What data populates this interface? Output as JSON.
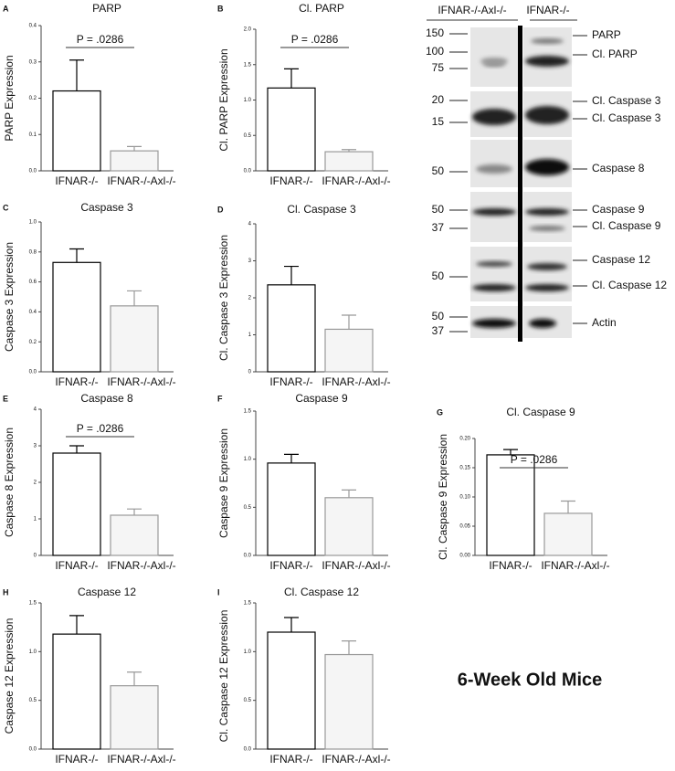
{
  "chart_data": [
    {
      "type": "bar",
      "panel": "A",
      "title": "PARP",
      "ylabel": "PARP Expression",
      "categories": [
        "IFNAR-/-",
        "IFNAR-/-Axl-/-"
      ],
      "values": [
        0.22,
        0.055
      ],
      "errors": [
        0.085,
        0.012
      ],
      "colors": [
        "#ffffff",
        "#f5f5f5"
      ],
      "edge_colors": [
        "#000000",
        "#999999"
      ],
      "ylim": [
        0,
        0.4
      ],
      "yticks": [
        {
          "value": 0,
          "label": "0.0"
        },
        0.1,
        0.2,
        0.3,
        0.4
      ],
      "annotation": "P = .0286"
    },
    {
      "type": "bar",
      "panel": "B",
      "title": "Cl. PARP",
      "ylabel": "Cl. PARP Expression",
      "categories": [
        "IFNAR-/-",
        "IFNAR-/-Axl-/-"
      ],
      "values": [
        1.17,
        0.27
      ],
      "errors": [
        0.27,
        0.03
      ],
      "colors": [
        "#ffffff",
        "#f5f5f5"
      ],
      "edge_colors": [
        "#000000",
        "#999999"
      ],
      "ylim": [
        0,
        2
      ],
      "yticks": [
        {
          "value": 0,
          "label": "0.0"
        },
        0.5,
        {
          "value": 1,
          "label": "1.0"
        },
        1.5,
        {
          "value": 2,
          "label": "2.0"
        }
      ],
      "annotation": "P = .0286"
    },
    {
      "type": "bar",
      "panel": "C",
      "title": "Caspase 3",
      "ylabel": "Caspase 3 Expression",
      "categories": [
        "IFNAR-/-",
        "IFNAR-/-Axl-/-"
      ],
      "values": [
        0.73,
        0.44
      ],
      "errors": [
        0.09,
        0.1
      ],
      "colors": [
        "#ffffff",
        "#f5f5f5"
      ],
      "edge_colors": [
        "#000000",
        "#999999"
      ],
      "ylim": [
        0,
        1
      ],
      "yticks": [
        {
          "value": 0,
          "label": "0.0"
        },
        0.2,
        0.4,
        0.6,
        0.8,
        {
          "value": 1,
          "label": "1.0"
        }
      ]
    },
    {
      "type": "bar",
      "panel": "D",
      "title": "Cl. Caspase 3",
      "ylabel": "Cl. Caspase 3 Expression",
      "categories": [
        "IFNAR-/-",
        "IFNAR-/-Axl-/-"
      ],
      "values": [
        2.35,
        1.15
      ],
      "errors": [
        0.5,
        0.38
      ],
      "colors": [
        "#ffffff",
        "#f5f5f5"
      ],
      "edge_colors": [
        "#000000",
        "#999999"
      ],
      "ylim": [
        0,
        4
      ],
      "yticks": [
        0,
        1,
        2,
        3,
        4
      ]
    },
    {
      "type": "bar",
      "panel": "E",
      "title": "Caspase 8",
      "ylabel": "Caspase 8 Expression",
      "categories": [
        "IFNAR-/-",
        "IFNAR-/-Axl-/-"
      ],
      "values": [
        2.8,
        1.1
      ],
      "errors": [
        0.2,
        0.17
      ],
      "colors": [
        "#ffffff",
        "#f5f5f5"
      ],
      "edge_colors": [
        "#000000",
        "#999999"
      ],
      "ylim": [
        0,
        4
      ],
      "yticks": [
        0,
        1,
        2,
        3,
        4
      ],
      "annotation": "P = .0286"
    },
    {
      "type": "bar",
      "panel": "F",
      "title": "Caspase 9",
      "ylabel": "Caspase 9 Expression",
      "categories": [
        "IFNAR-/-",
        "IFNAR-/-Axl-/-"
      ],
      "values": [
        0.96,
        0.6
      ],
      "errors": [
        0.09,
        0.08
      ],
      "colors": [
        "#ffffff",
        "#f5f5f5"
      ],
      "edge_colors": [
        "#000000",
        "#999999"
      ],
      "ylim": [
        0,
        1.5
      ],
      "yticks": [
        {
          "value": 0,
          "label": "0.0"
        },
        0.5,
        {
          "value": 1,
          "label": "1.0"
        },
        1.5
      ]
    },
    {
      "type": "bar",
      "panel": "G",
      "title": "Cl. Caspase 9",
      "ylabel": "Cl. Caspase 9 Expression",
      "categories": [
        "IFNAR-/-",
        "IFNAR-/-Axl-/-"
      ],
      "values": [
        0.172,
        0.072
      ],
      "errors": [
        0.009,
        0.021
      ],
      "colors": [
        "#ffffff",
        "#f5f5f5"
      ],
      "edge_colors": [
        "#000000",
        "#999999"
      ],
      "ylim": [
        0,
        0.2
      ],
      "yticks": [
        {
          "value": 0,
          "label": "0.00"
        },
        0.05,
        {
          "value": 0.1,
          "label": "0.10"
        },
        0.15,
        {
          "value": 0.2,
          "label": "0.20"
        }
      ],
      "annotation": "P = .0286"
    },
    {
      "type": "bar",
      "panel": "H",
      "title": "Caspase 12",
      "ylabel": "Caspase 12 Expression",
      "categories": [
        "IFNAR-/-",
        "IFNAR-/-Axl-/-"
      ],
      "values": [
        1.18,
        0.65
      ],
      "errors": [
        0.19,
        0.14
      ],
      "colors": [
        "#ffffff",
        "#f5f5f5"
      ],
      "edge_colors": [
        "#000000",
        "#999999"
      ],
      "ylim": [
        0,
        1.5
      ],
      "yticks": [
        {
          "value": 0,
          "label": "0.0"
        },
        0.5,
        {
          "value": 1,
          "label": "1.0"
        },
        1.5
      ]
    },
    {
      "type": "bar",
      "panel": "I",
      "title": "Cl. Caspase 12",
      "ylabel": "Cl. Caspase 12 Expression",
      "categories": [
        "IFNAR-/-",
        "IFNAR-/-Axl-/-"
      ],
      "values": [
        1.2,
        0.97
      ],
      "errors": [
        0.15,
        0.14
      ],
      "colors": [
        "#ffffff",
        "#f5f5f5"
      ],
      "edge_colors": [
        "#000000",
        "#999999"
      ],
      "ylim": [
        0,
        1.5
      ],
      "yticks": [
        {
          "value": 0,
          "label": "0.0"
        },
        0.5,
        {
          "value": 1,
          "label": "1.0"
        },
        1.5
      ]
    }
  ],
  "blot": {
    "lanes": [
      "IFNAR-/-Axl-/-",
      "IFNAR-/-"
    ],
    "markers": [
      "150",
      "100",
      "75",
      "20",
      "15",
      "50",
      "50",
      "37",
      "50",
      "50",
      "37"
    ],
    "bands": [
      "PARP",
      "Cl. PARP",
      "Cl. Caspase 3",
      "Cl. Caspase 3",
      "Caspase 8",
      "Caspase 9",
      "Cl. Caspase 9",
      "Caspase 12",
      "Cl. Caspase 12",
      "Actin"
    ]
  },
  "caption": "6-Week Old Mice"
}
